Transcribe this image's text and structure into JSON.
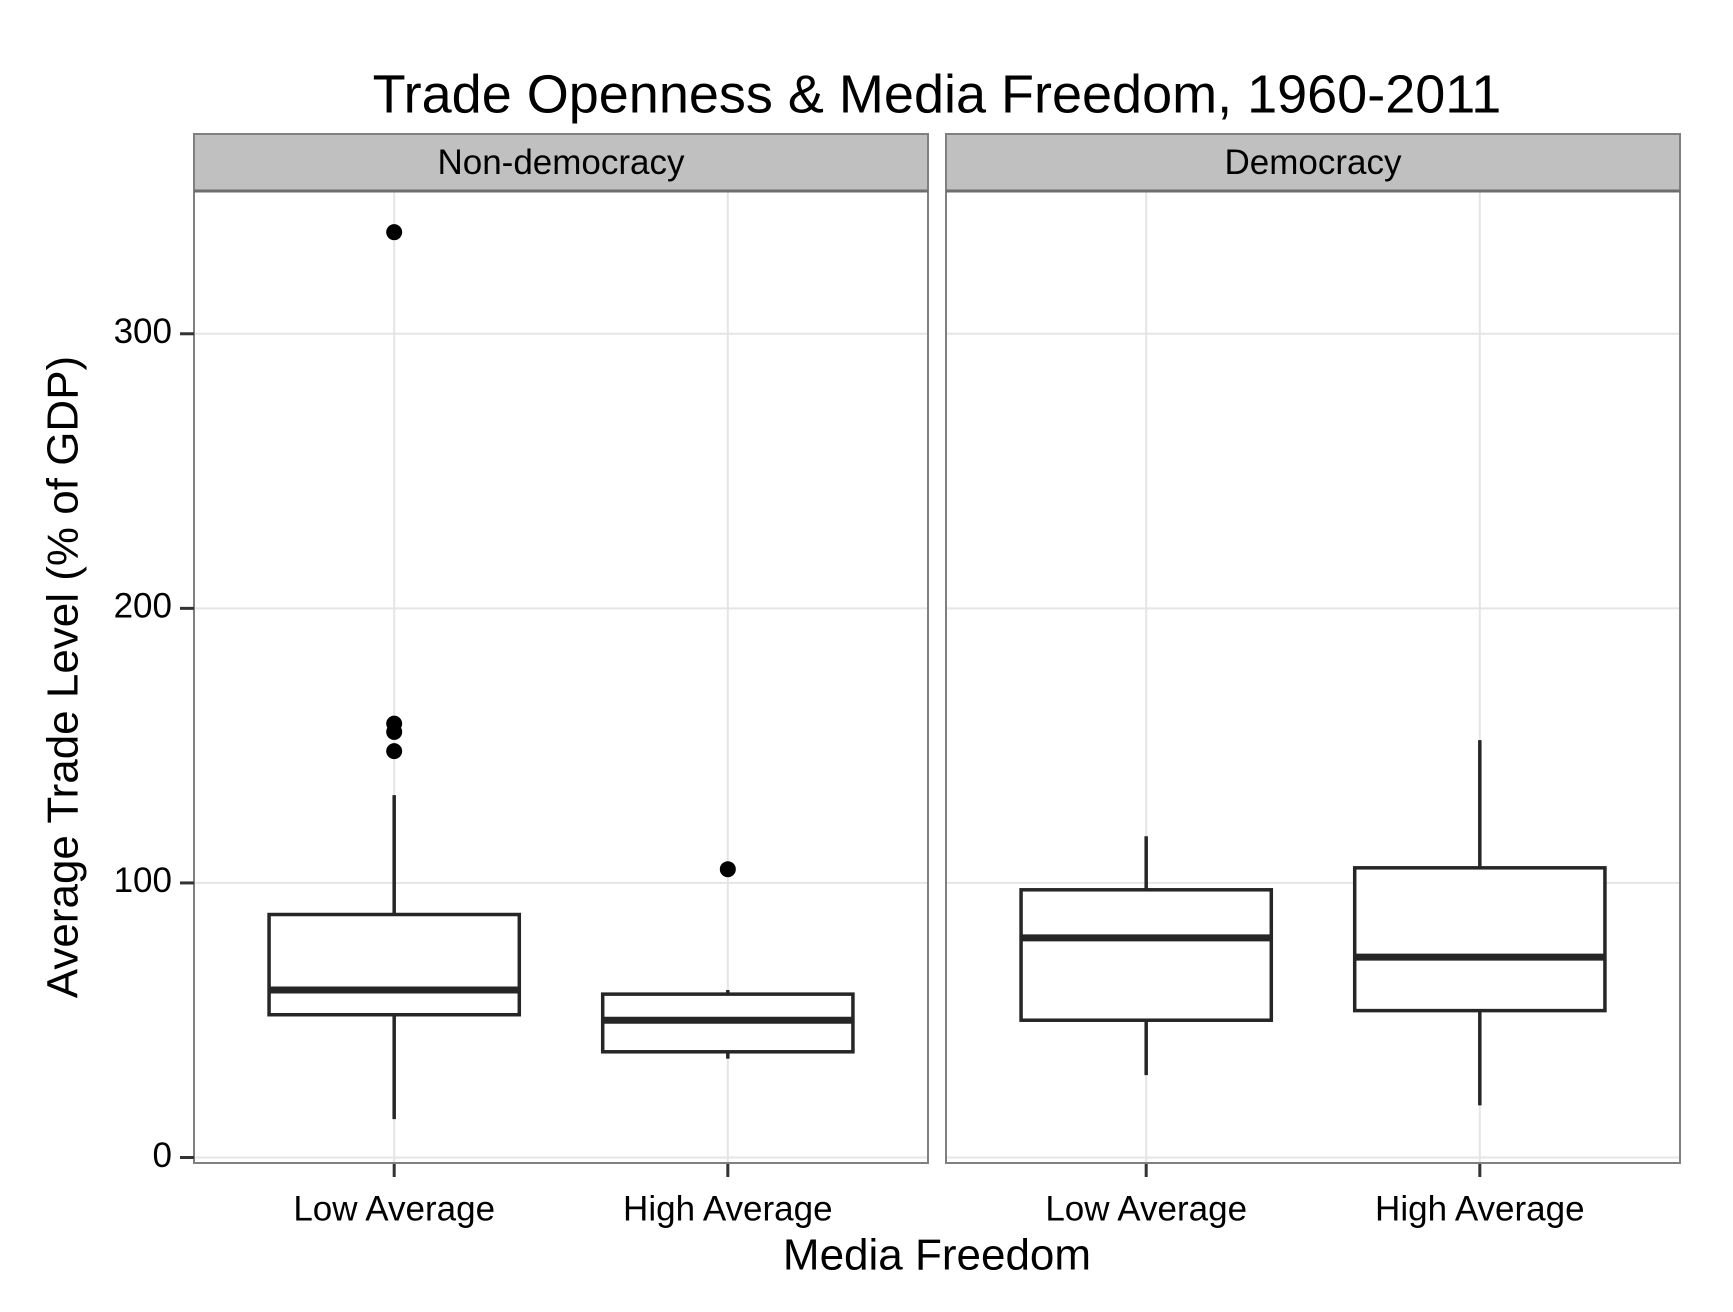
{
  "chart_data": {
    "type": "boxplot",
    "title": "Trade Openness & Media Freedom, 1960-2011",
    "x_label": "Media Freedom",
    "y_label": "Average Trade Level (% of GDP)",
    "categories": [
      "Low Average",
      "High Average"
    ],
    "ylim": [
      -2,
      352
    ],
    "yticks": [
      0,
      100,
      200,
      300
    ],
    "grid": true,
    "color": "#262626",
    "panels": [
      {
        "name": "Non-democracy",
        "boxes": [
          {
            "whisker_low": 14,
            "q1": 52,
            "median": 61,
            "q3": 88.5,
            "whisker_high": 132,
            "outliers": [
              337,
              158,
              155,
              148
            ]
          },
          {
            "whisker_low": 36,
            "q1": 38.5,
            "median": 50,
            "q3": 59.5,
            "whisker_high": 61,
            "outliers": [
              105
            ]
          }
        ]
      },
      {
        "name": "Democracy",
        "boxes": [
          {
            "whisker_low": 30,
            "q1": 50,
            "median": 80,
            "q3": 97.5,
            "whisker_high": 117,
            "outliers": []
          },
          {
            "whisker_low": 19,
            "q1": 53.5,
            "median": 73,
            "q3": 105.5,
            "whisker_high": 152,
            "outliers": []
          }
        ]
      }
    ]
  }
}
